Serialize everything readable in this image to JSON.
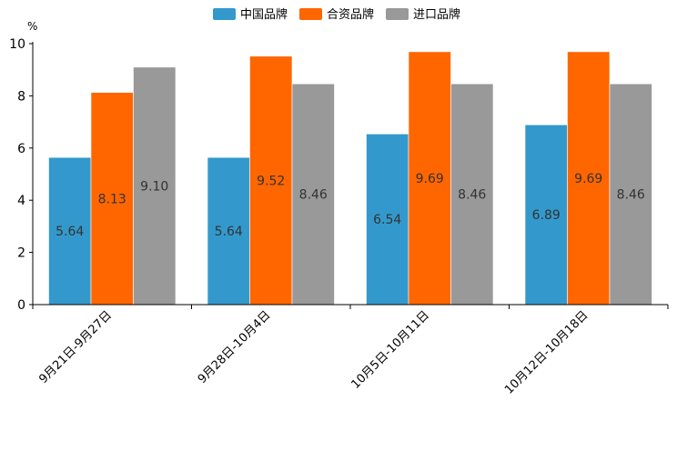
{
  "chart_data": {
    "type": "bar",
    "title": "",
    "xlabel": "",
    "ylabel": "%",
    "ylim": [
      0,
      10
    ],
    "yticks": [
      0,
      2,
      4,
      6,
      8,
      10
    ],
    "categories": [
      "9月21日-9月27日",
      "9月28日-10月4日",
      "10月5日-10月11日",
      "10月12日-10月18日"
    ],
    "series": [
      {
        "name": "中国品牌",
        "color": "#3399cc",
        "values": [
          5.64,
          5.64,
          6.54,
          6.89
        ]
      },
      {
        "name": "合资品牌",
        "color": "#ff6600",
        "values": [
          8.13,
          9.52,
          9.69,
          9.69
        ]
      },
      {
        "name": "进口品牌",
        "color": "#999999",
        "values": [
          9.1,
          8.46,
          8.46,
          8.46
        ]
      }
    ],
    "legend_position": "top-center",
    "grid": false
  }
}
